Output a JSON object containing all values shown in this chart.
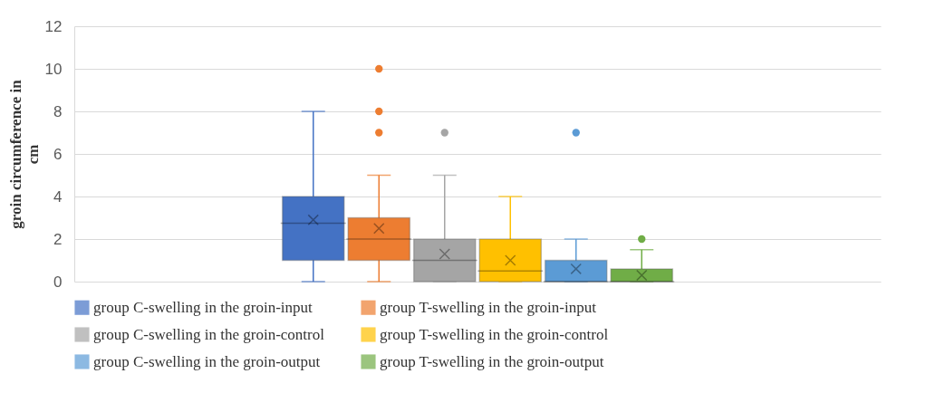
{
  "chart_data": {
    "type": "box",
    "ylabel": "groin circumference in cm",
    "categories": [
      null
    ],
    "ylim": [
      0,
      12
    ],
    "yticks": [
      0,
      2,
      4,
      6,
      8,
      10,
      12
    ],
    "grid": "y",
    "legend": "bottom",
    "series": [
      {
        "name": "group C-swelling in the groin-input",
        "color": "#4472c4",
        "boxes": [
          {
            "low": 0,
            "q1": 1,
            "median": 2.75,
            "q3": 4,
            "high": 8,
            "mean": 2.9
          }
        ]
      },
      {
        "name": "group T-swelling in the groin-input",
        "color": "#ed7d31",
        "boxes": [
          {
            "low": 0,
            "q1": 1,
            "median": 2,
            "q3": 3,
            "high": 5,
            "mean": 2.5,
            "outliers": [
              7,
              8,
              10
            ]
          }
        ]
      },
      {
        "name": "group C-swelling in the groin-control",
        "color": "#a5a5a5",
        "boxes": [
          {
            "low": 0,
            "q1": 0,
            "median": 1,
            "q3": 2,
            "high": 5,
            "mean": 1.3,
            "outliers": [
              7
            ]
          }
        ]
      },
      {
        "name": "group T-swelling in the groin-control",
        "color": "#ffc000",
        "boxes": [
          {
            "low": 0,
            "q1": 0,
            "median": 0.5,
            "q3": 2,
            "high": 4,
            "mean": 1
          }
        ]
      },
      {
        "name": "group C-swelling in the groin-output",
        "color": "#5b9bd5",
        "boxes": [
          {
            "low": 0,
            "q1": 0,
            "median": 0,
            "q3": 1,
            "high": 2,
            "mean": 0.6,
            "outliers": [
              7
            ]
          }
        ]
      },
      {
        "name": "group T-swelling in the groin-output",
        "color": "#70ad47",
        "boxes": [
          {
            "low": 0,
            "q1": 0,
            "median": 0,
            "q3": 0.6,
            "high": 1.5,
            "mean": 0.3,
            "outliers": [
              2
            ]
          }
        ]
      }
    ]
  }
}
